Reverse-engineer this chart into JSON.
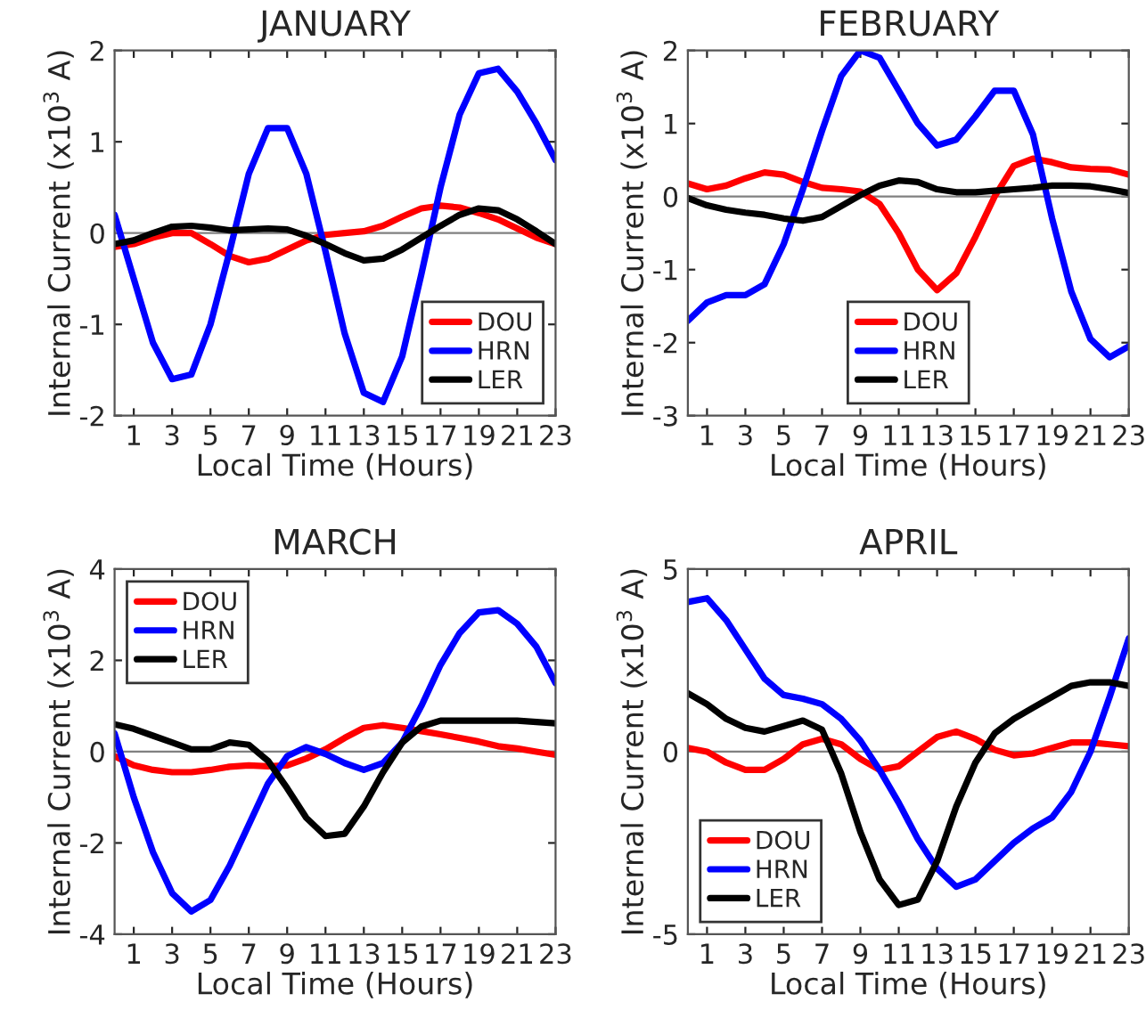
{
  "chart_data": [
    {
      "type": "line",
      "title": "JANUARY",
      "xlabel": "Local Time (Hours)",
      "ylabel": "Internal Current (x10$^{3}$ A)",
      "x": [
        0,
        1,
        2,
        3,
        4,
        5,
        6,
        7,
        8,
        9,
        10,
        11,
        12,
        13,
        14,
        15,
        16,
        17,
        18,
        19,
        20,
        21,
        22,
        23
      ],
      "xlim": [
        0,
        23
      ],
      "xticks": [
        1,
        3,
        5,
        7,
        9,
        11,
        13,
        15,
        17,
        19,
        21,
        23
      ],
      "ylim": [
        -2,
        2
      ],
      "yticks": [
        -2,
        -1,
        0,
        1,
        2
      ],
      "legend": "bottom right",
      "grid": false,
      "ref_lines": [
        {
          "axis": "y",
          "value": 0,
          "color": "#808080"
        }
      ],
      "series": [
        {
          "name": "DOU",
          "color": "#ff0000",
          "values": [
            -0.15,
            -0.12,
            -0.05,
            0.0,
            0.0,
            -0.12,
            -0.25,
            -0.32,
            -0.28,
            -0.18,
            -0.08,
            -0.02,
            0.0,
            0.02,
            0.08,
            0.18,
            0.27,
            0.3,
            0.28,
            0.22,
            0.15,
            0.05,
            -0.05,
            -0.12
          ]
        },
        {
          "name": "HRN",
          "color": "#0000ff",
          "values": [
            0.2,
            -0.5,
            -1.2,
            -1.6,
            -1.55,
            -1.0,
            -0.2,
            0.65,
            1.15,
            1.15,
            0.65,
            -0.2,
            -1.1,
            -1.75,
            -1.85,
            -1.35,
            -0.45,
            0.5,
            1.3,
            1.75,
            1.8,
            1.55,
            1.2,
            0.8
          ]
        },
        {
          "name": "LER",
          "color": "#000000",
          "values": [
            -0.12,
            -0.08,
            0.0,
            0.07,
            0.08,
            0.06,
            0.03,
            0.04,
            0.05,
            0.04,
            -0.03,
            -0.12,
            -0.22,
            -0.3,
            -0.28,
            -0.18,
            -0.05,
            0.08,
            0.2,
            0.27,
            0.25,
            0.15,
            0.02,
            -0.12
          ]
        }
      ]
    },
    {
      "type": "line",
      "title": "FEBRUARY",
      "xlabel": "Local Time (Hours)",
      "ylabel": "Internal Current (x10$^{3}$ A)",
      "x": [
        0,
        1,
        2,
        3,
        4,
        5,
        6,
        7,
        8,
        9,
        10,
        11,
        12,
        13,
        14,
        15,
        16,
        17,
        18,
        19,
        20,
        21,
        22,
        23
      ],
      "xlim": [
        0,
        23
      ],
      "xticks": [
        1,
        3,
        5,
        7,
        9,
        11,
        13,
        15,
        17,
        19,
        21,
        23
      ],
      "ylim": [
        -3,
        2
      ],
      "yticks": [
        -3,
        -2,
        -1,
        0,
        1,
        2
      ],
      "legend": "bottom",
      "grid": false,
      "ref_lines": [
        {
          "axis": "y",
          "value": 0,
          "color": "#808080"
        }
      ],
      "series": [
        {
          "name": "DOU",
          "color": "#ff0000",
          "values": [
            0.18,
            0.1,
            0.15,
            0.25,
            0.33,
            0.3,
            0.2,
            0.12,
            0.1,
            0.07,
            -0.1,
            -0.5,
            -1.0,
            -1.28,
            -1.05,
            -0.55,
            0.0,
            0.42,
            0.52,
            0.47,
            0.4,
            0.38,
            0.37,
            0.3
          ]
        },
        {
          "name": "HRN",
          "color": "#0000ff",
          "values": [
            -1.7,
            -1.45,
            -1.35,
            -1.35,
            -1.2,
            -0.65,
            0.1,
            0.9,
            1.65,
            2.0,
            1.9,
            1.45,
            1.0,
            0.7,
            0.78,
            1.1,
            1.45,
            1.45,
            0.85,
            -0.3,
            -1.3,
            -1.95,
            -2.2,
            -2.05
          ]
        },
        {
          "name": "LER",
          "color": "#000000",
          "values": [
            -0.02,
            -0.12,
            -0.18,
            -0.22,
            -0.25,
            -0.3,
            -0.33,
            -0.28,
            -0.13,
            0.02,
            0.15,
            0.22,
            0.2,
            0.1,
            0.06,
            0.06,
            0.08,
            0.1,
            0.12,
            0.15,
            0.15,
            0.14,
            0.1,
            0.05
          ]
        }
      ]
    },
    {
      "type": "line",
      "title": "MARCH",
      "xlabel": "Local Time (Hours)",
      "ylabel": "Internal Current (x10$^{3}$ A)",
      "x": [
        0,
        1,
        2,
        3,
        4,
        5,
        6,
        7,
        8,
        9,
        10,
        11,
        12,
        13,
        14,
        15,
        16,
        17,
        18,
        19,
        20,
        21,
        22,
        23
      ],
      "xlim": [
        0,
        23
      ],
      "xticks": [
        1,
        3,
        5,
        7,
        9,
        11,
        13,
        15,
        17,
        19,
        21,
        23
      ],
      "ylim": [
        -4,
        4
      ],
      "yticks": [
        -4,
        -2,
        0,
        2,
        4
      ],
      "legend": "top left",
      "grid": false,
      "ref_lines": [
        {
          "axis": "y",
          "value": 0,
          "color": "#808080"
        }
      ],
      "series": [
        {
          "name": "DOU",
          "color": "#ff0000",
          "values": [
            -0.1,
            -0.3,
            -0.4,
            -0.45,
            -0.45,
            -0.4,
            -0.33,
            -0.3,
            -0.32,
            -0.3,
            -0.15,
            0.05,
            0.3,
            0.52,
            0.58,
            0.52,
            0.45,
            0.38,
            0.3,
            0.22,
            0.12,
            0.07,
            0.0,
            -0.07
          ]
        },
        {
          "name": "HRN",
          "color": "#0000ff",
          "values": [
            0.4,
            -1.0,
            -2.2,
            -3.1,
            -3.5,
            -3.25,
            -2.5,
            -1.6,
            -0.7,
            -0.1,
            0.1,
            -0.05,
            -0.25,
            -0.4,
            -0.25,
            0.2,
            1.0,
            1.9,
            2.6,
            3.05,
            3.1,
            2.8,
            2.3,
            1.5
          ]
        },
        {
          "name": "LER",
          "color": "#000000",
          "values": [
            0.6,
            0.5,
            0.35,
            0.2,
            0.05,
            0.05,
            0.2,
            0.15,
            -0.2,
            -0.8,
            -1.45,
            -1.85,
            -1.8,
            -1.2,
            -0.45,
            0.2,
            0.55,
            0.68,
            0.68,
            0.68,
            0.68,
            0.68,
            0.65,
            0.62
          ]
        }
      ]
    },
    {
      "type": "line",
      "title": "APRIL",
      "xlabel": "Local Time (Hours)",
      "ylabel": "Internal Current (x10$^{3}$ A)",
      "x": [
        0,
        1,
        2,
        3,
        4,
        5,
        6,
        7,
        8,
        9,
        10,
        11,
        12,
        13,
        14,
        15,
        16,
        17,
        18,
        19,
        20,
        21,
        22,
        23
      ],
      "xlim": [
        0,
        23
      ],
      "xticks": [
        1,
        3,
        5,
        7,
        9,
        11,
        13,
        15,
        17,
        19,
        21,
        23
      ],
      "ylim": [
        -5,
        5
      ],
      "yticks": [
        -5,
        0,
        5
      ],
      "legend": "bottom left",
      "grid": false,
      "ref_lines": [
        {
          "axis": "y",
          "value": 0,
          "color": "#808080"
        }
      ],
      "series": [
        {
          "name": "DOU",
          "color": "#ff0000",
          "values": [
            0.1,
            0.0,
            -0.3,
            -0.5,
            -0.5,
            -0.2,
            0.2,
            0.35,
            0.2,
            -0.2,
            -0.5,
            -0.4,
            0.0,
            0.4,
            0.55,
            0.35,
            0.05,
            -0.1,
            -0.05,
            0.1,
            0.25,
            0.25,
            0.2,
            0.15
          ]
        },
        {
          "name": "HRN",
          "color": "#0000ff",
          "values": [
            4.1,
            4.2,
            3.6,
            2.8,
            2.0,
            1.55,
            1.45,
            1.3,
            0.9,
            0.3,
            -0.5,
            -1.4,
            -2.4,
            -3.2,
            -3.7,
            -3.5,
            -3.0,
            -2.5,
            -2.1,
            -1.8,
            -1.1,
            0.0,
            1.5,
            3.1
          ]
        },
        {
          "name": "LER",
          "color": "#000000",
          "values": [
            1.6,
            1.3,
            0.9,
            0.65,
            0.55,
            0.7,
            0.85,
            0.6,
            -0.6,
            -2.2,
            -3.5,
            -4.2,
            -4.05,
            -3.0,
            -1.5,
            -0.3,
            0.5,
            0.9,
            1.2,
            1.5,
            1.8,
            1.9,
            1.9,
            1.8
          ]
        }
      ]
    }
  ]
}
